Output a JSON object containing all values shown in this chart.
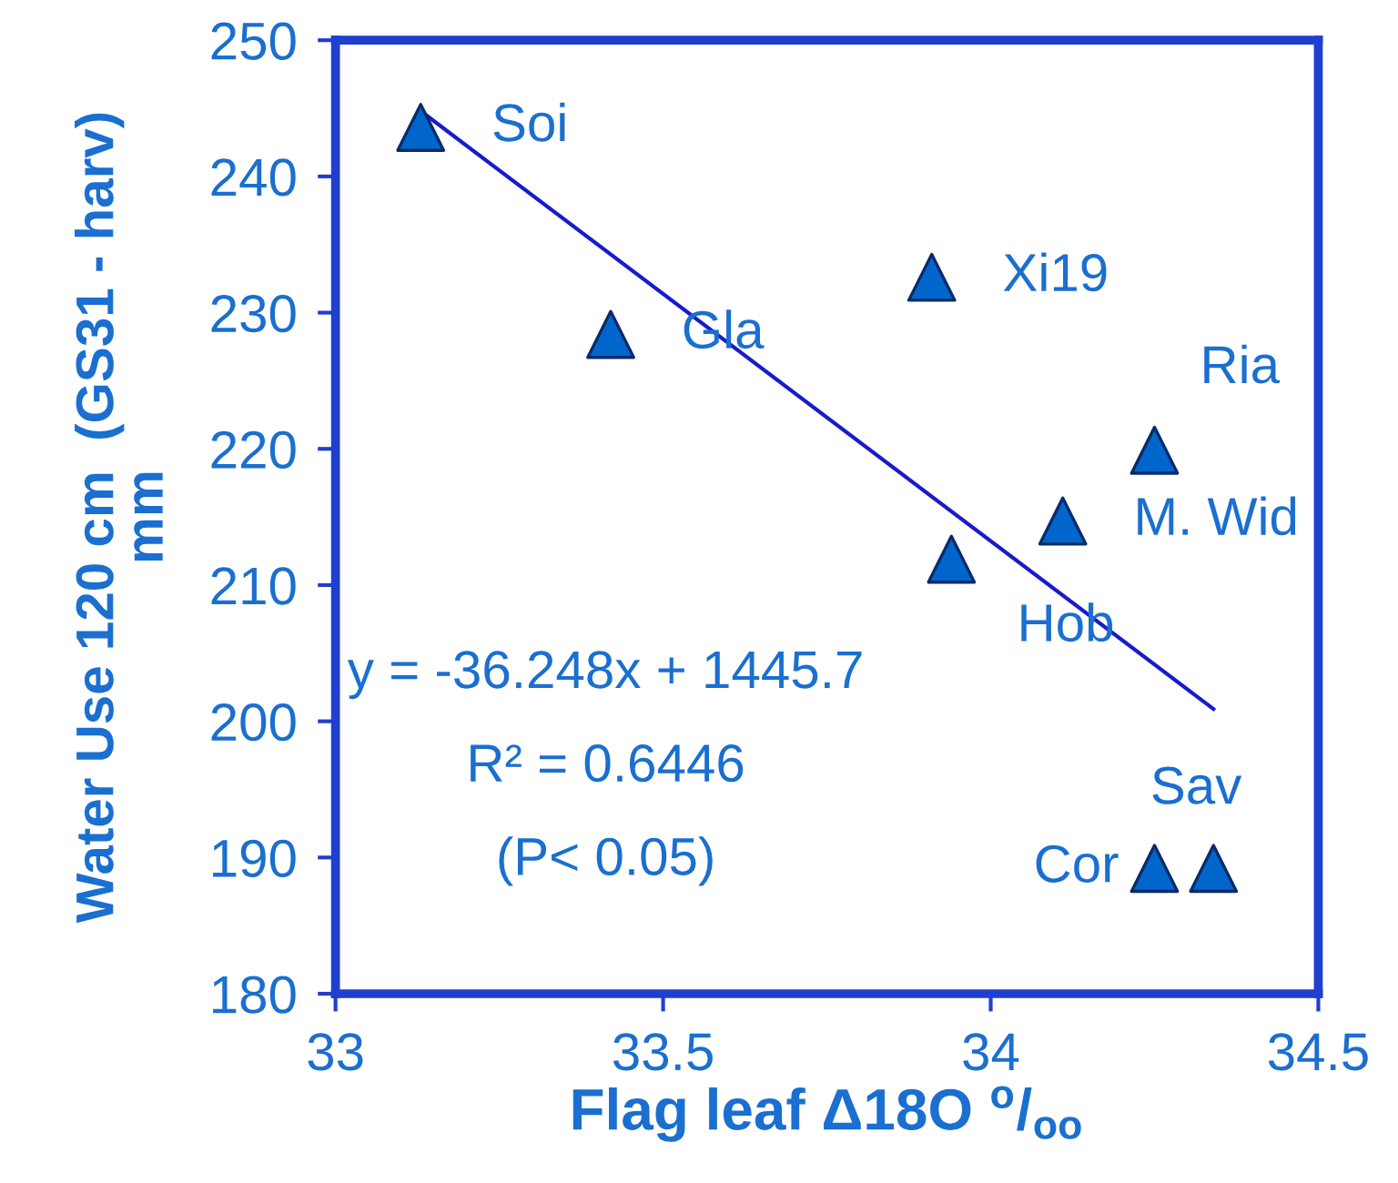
{
  "chart_data": {
    "type": "scatter",
    "xlabel": "Flag leaf Δ18O $^{o}$/$_{oo}$",
    "ylabel": "Water Use 120 cm  (GS31 - harv)\nmm",
    "xlim": [
      33,
      34.5
    ],
    "xticks": [
      33,
      33.5,
      34,
      34.5
    ],
    "ylim": [
      180,
      250
    ],
    "yticks": [
      180,
      190,
      200,
      210,
      220,
      230,
      240,
      250
    ],
    "grid": false,
    "legend": false,
    "marker": "triangle",
    "series": [
      {
        "color": "#0066cc",
        "x": [
          33.13,
          33.42,
          33.91,
          34.25,
          34.11,
          33.94,
          34.25,
          34.34
        ],
        "values": [
          243.6,
          228.4,
          232.6,
          219.9,
          214.7,
          211.9,
          189.2,
          189.2
        ]
      },
      {
        "type": "line",
        "color": "#1a1acc",
        "line_style": "solid",
        "marker": "none",
        "x": [
          33.13,
          34.34
        ],
        "values": [
          244.8,
          200.9
        ]
      }
    ],
    "annotations": [
      {
        "text": "Soi",
        "x": 33.13,
        "y": 243.6
      },
      {
        "text": "Gla",
        "x": 33.42,
        "y": 228.4
      },
      {
        "text": "Xi19",
        "x": 33.91,
        "y": 232.6
      },
      {
        "text": "Ria",
        "x": 34.25,
        "y": 219.9
      },
      {
        "text": "M. Wid",
        "x": 34.11,
        "y": 214.7
      },
      {
        "text": "Hob",
        "x": 33.94,
        "y": 211.9
      },
      {
        "text": "Cor",
        "x": 34.25,
        "y": 189.2
      },
      {
        "text": "Sav",
        "x": 34.34,
        "y": 189.2
      },
      "y = -36.248x + 1445.7",
      "R² = 0.6446",
      "(P< 0.05)"
    ]
  }
}
